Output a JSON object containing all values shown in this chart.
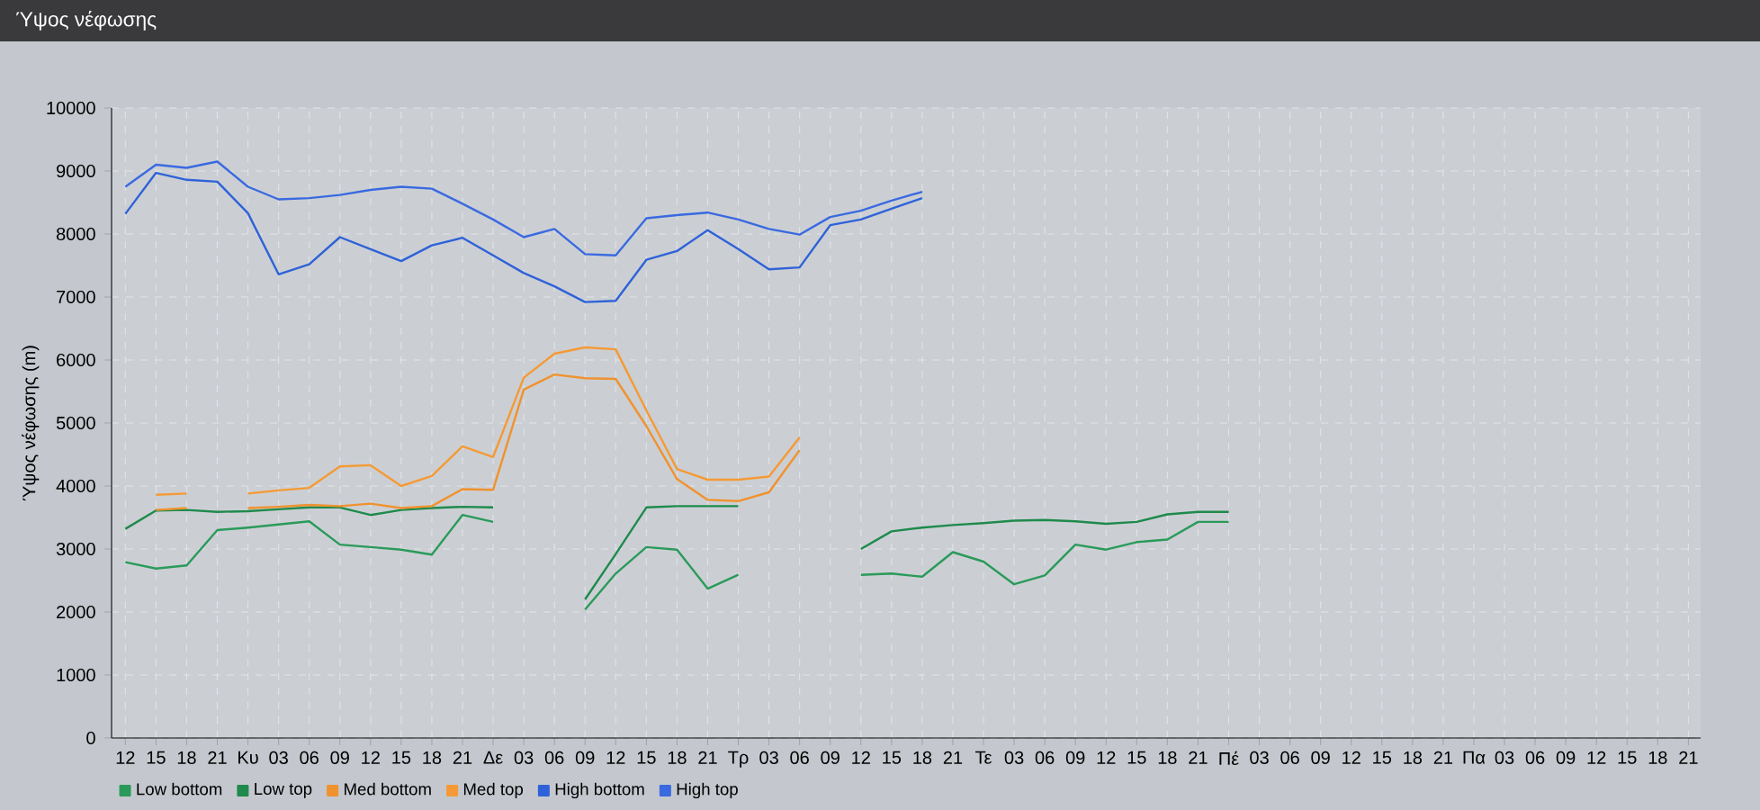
{
  "chart_data": {
    "type": "line",
    "title": "Ύψος νέφωσης",
    "ylabel": "Ύψος νέφωσης (m)",
    "categories": [
      "12",
      "15",
      "18",
      "21",
      "Κυ",
      "03",
      "06",
      "09",
      "12",
      "15",
      "18",
      "21",
      "Δε",
      "03",
      "06",
      "09",
      "12",
      "15",
      "18",
      "21",
      "Τρ",
      "03",
      "06",
      "09",
      "12",
      "15",
      "18",
      "21",
      "Τε",
      "03",
      "06",
      "09",
      "12",
      "15",
      "18",
      "21",
      "Πέ",
      "03",
      "06",
      "09",
      "12",
      "15",
      "18",
      "21",
      "Πα",
      "03",
      "06",
      "09",
      "12",
      "15",
      "18",
      "21"
    ],
    "ylim": [
      0,
      10000
    ],
    "yticks": [
      0,
      1000,
      2000,
      3000,
      4000,
      5000,
      6000,
      7000,
      8000,
      9000,
      10000
    ],
    "grid": true,
    "legend": "bottom left",
    "marker": "none",
    "line_style": "solid",
    "series": [
      {
        "name": "Low bottom",
        "color": "#2a9a5a",
        "values": [
          2790,
          2690,
          2740,
          3300,
          3340,
          3390,
          3440,
          3070,
          3030,
          2990,
          2910,
          3540,
          3430,
          null,
          null,
          2040,
          2610,
          3030,
          2990,
          2370,
          2590,
          null,
          null,
          null,
          2590,
          2610,
          2560,
          2950,
          2800,
          2440,
          2580,
          3070,
          2990,
          3110,
          3150,
          3430,
          3430,
          null,
          null,
          null,
          null,
          null,
          null,
          null,
          null,
          null,
          null,
          null,
          null,
          null,
          null,
          null
        ]
      },
      {
        "name": "Low top",
        "color": "#1f8a4c",
        "values": [
          3320,
          3610,
          3620,
          3590,
          3600,
          3630,
          3660,
          3660,
          3540,
          3620,
          3650,
          3670,
          3660,
          null,
          null,
          2200,
          2920,
          3660,
          3680,
          3680,
          3680,
          null,
          null,
          null,
          3000,
          3280,
          3340,
          3380,
          3410,
          3450,
          3460,
          3440,
          3400,
          3430,
          3550,
          3590,
          3590,
          null,
          null,
          null,
          null,
          null,
          null,
          null,
          null,
          null,
          null,
          null,
          null,
          null,
          null,
          null
        ]
      },
      {
        "name": "Med bottom",
        "color": "#f0922e",
        "values": [
          null,
          3620,
          3650,
          null,
          3650,
          3670,
          3700,
          3680,
          3720,
          3650,
          3680,
          3950,
          3940,
          5530,
          5770,
          5710,
          5700,
          4950,
          4110,
          3780,
          3760,
          3900,
          4570,
          null,
          null,
          null,
          null,
          null,
          null,
          null,
          null,
          null,
          null,
          null,
          null,
          null,
          null,
          null,
          null,
          null,
          null,
          null,
          null,
          null,
          null,
          null,
          null,
          null,
          null,
          null,
          null,
          null
        ]
      },
      {
        "name": "Med top",
        "color": "#f59a35",
        "values": [
          null,
          3860,
          3880,
          null,
          3880,
          3930,
          3970,
          4310,
          4330,
          4000,
          4160,
          4630,
          4460,
          5720,
          6100,
          6200,
          6170,
          5200,
          4270,
          4100,
          4100,
          4150,
          4770,
          null,
          null,
          null,
          null,
          null,
          null,
          null,
          null,
          null,
          null,
          null,
          null,
          null,
          null,
          null,
          null,
          null,
          null,
          null,
          null,
          null,
          null,
          null,
          null,
          null,
          null,
          null,
          null,
          null
        ]
      },
      {
        "name": "High bottom",
        "color": "#2f62d8",
        "values": [
          8320,
          8970,
          8860,
          8830,
          8330,
          7360,
          7520,
          7950,
          7760,
          7570,
          7820,
          7940,
          7660,
          7380,
          7170,
          6920,
          6940,
          7590,
          7730,
          8060,
          7760,
          7440,
          7470,
          8140,
          8230,
          8400,
          8570,
          null,
          null,
          null,
          null,
          null,
          null,
          null,
          null,
          null,
          null,
          null,
          null,
          null,
          null,
          null,
          null,
          null,
          null,
          null,
          null,
          null,
          null,
          null,
          null,
          null
        ]
      },
      {
        "name": "High top",
        "color": "#3a6ae0",
        "values": [
          8750,
          9100,
          9050,
          9150,
          8750,
          8550,
          8570,
          8620,
          8700,
          8750,
          8720,
          8480,
          8230,
          7950,
          8080,
          7680,
          7660,
          8250,
          8300,
          8340,
          8230,
          8080,
          7990,
          8270,
          8370,
          8530,
          8670,
          null,
          null,
          null,
          null,
          null,
          null,
          null,
          null,
          null,
          null,
          null,
          null,
          null,
          null,
          null,
          null,
          null,
          null,
          null,
          null,
          null,
          null,
          null,
          null,
          null
        ]
      }
    ]
  }
}
